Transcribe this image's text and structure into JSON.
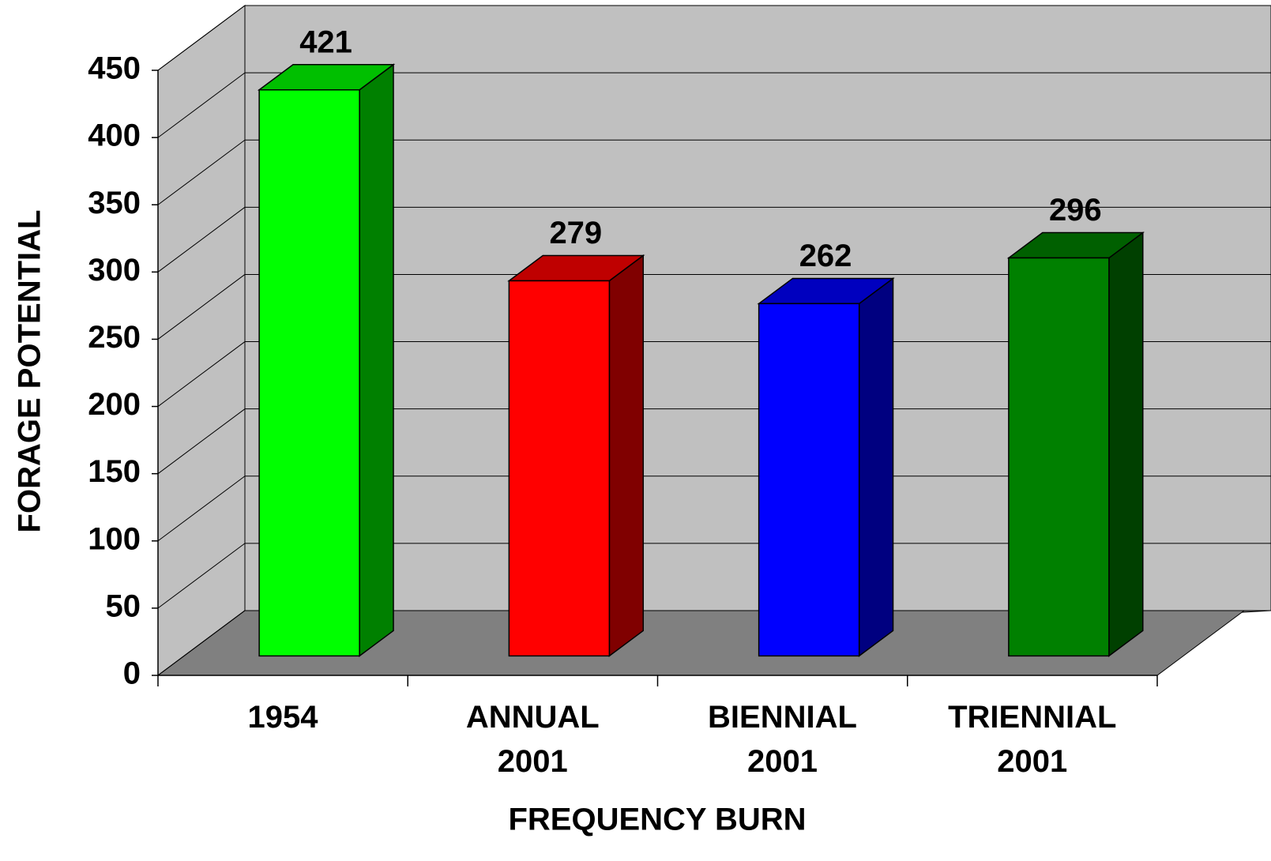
{
  "chart_data": {
    "type": "bar3d",
    "categories": [
      "1954",
      "ANNUAL\n2001",
      "BIENNIAL\n2001",
      "TRIENNIAL\n2001"
    ],
    "values": [
      421,
      279,
      262,
      296
    ],
    "colors": [
      "#00ff00",
      "#ff0000",
      "#0000ff",
      "#008000"
    ],
    "xlabel": "FREQUENCY BURN",
    "ylabel": "FORAGE POTENTIAL",
    "ylim": [
      0,
      450
    ],
    "yticks": [
      0,
      50,
      100,
      150,
      200,
      250,
      300,
      350,
      400,
      450
    ],
    "grid": true
  }
}
